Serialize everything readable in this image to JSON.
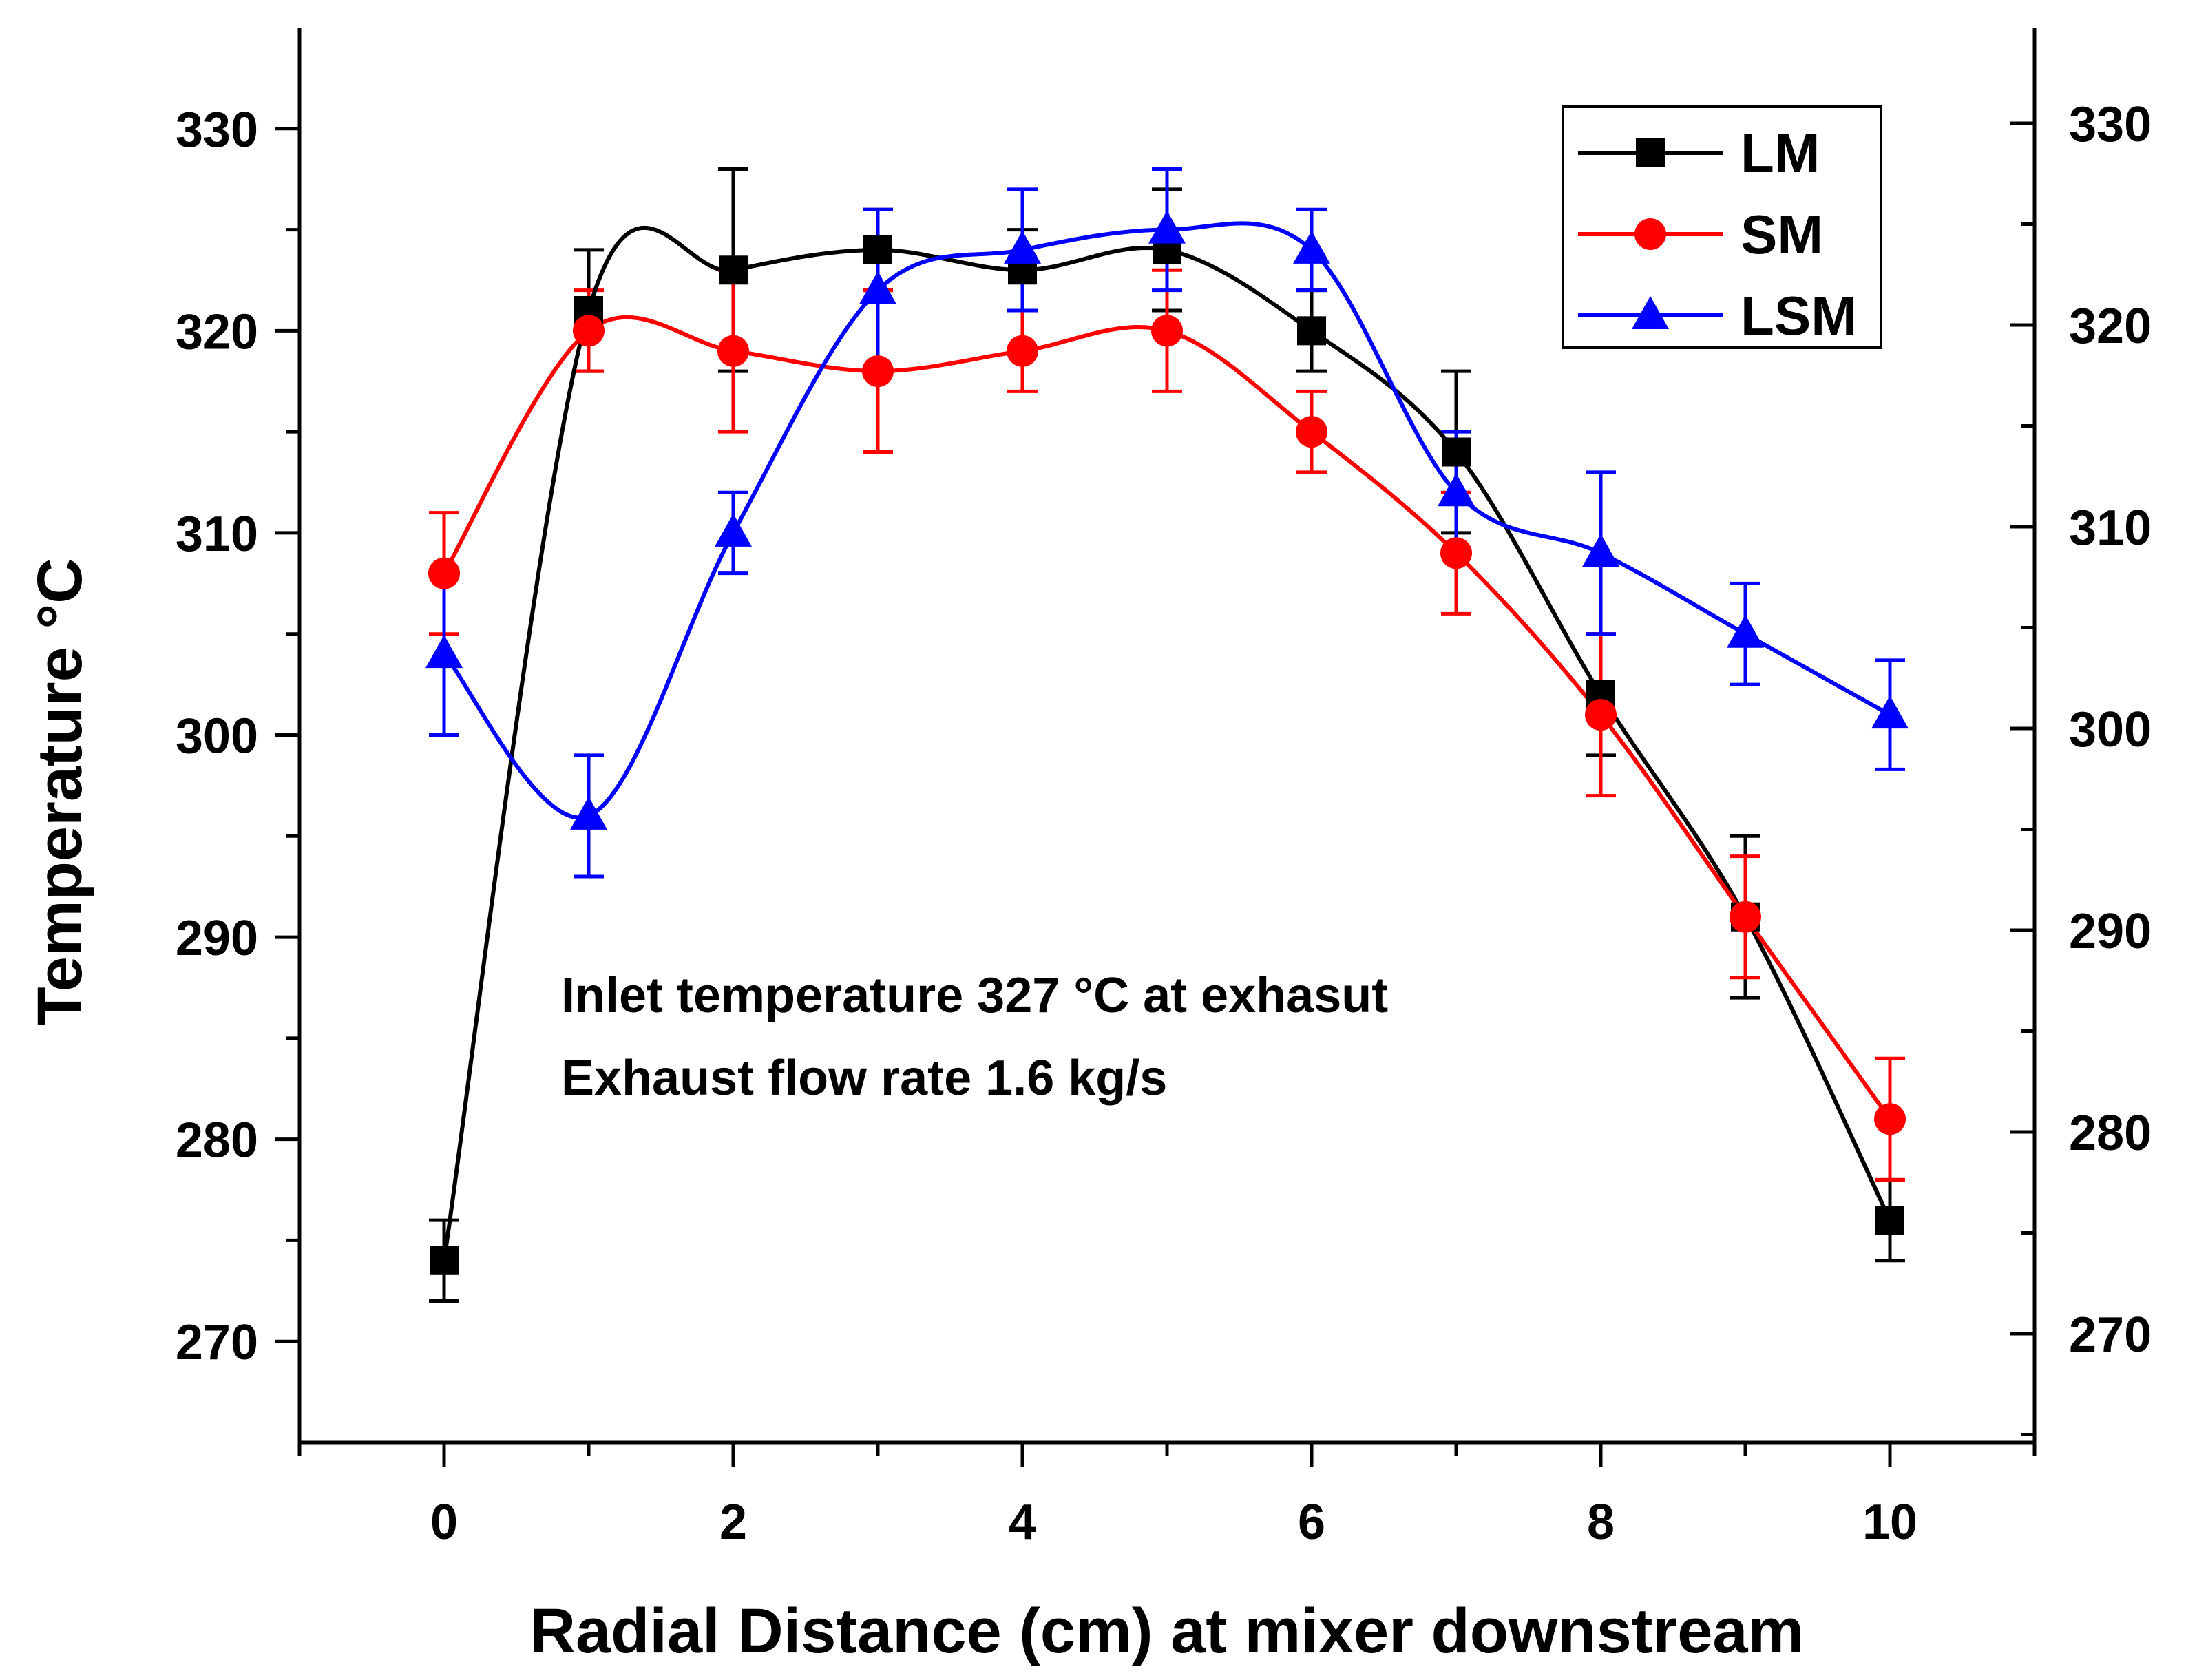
{
  "chart_data": {
    "type": "line",
    "title": "",
    "xlabel": "Radial Distance (cm) at mixer downstream",
    "ylabel": "Temperature °C",
    "xlim": [
      -1,
      11
    ],
    "ylim": [
      265,
      335
    ],
    "x_ticks": [
      0,
      2,
      4,
      6,
      8,
      10
    ],
    "y_ticks": [
      270,
      280,
      290,
      300,
      310,
      320,
      330
    ],
    "x_tick_labels": [
      "0",
      "2",
      "4",
      "6",
      "8",
      "10"
    ],
    "y_tick_labels": [
      "270",
      "280",
      "290",
      "300",
      "310",
      "320",
      "330"
    ],
    "grid": false,
    "legend_position": "top-right",
    "x": [
      0,
      1,
      2,
      3,
      4,
      5,
      6,
      7,
      8,
      9,
      10
    ],
    "series": [
      {
        "name": "LM",
        "color": "#000000",
        "marker": "square",
        "values": [
          274,
          321,
          323,
          324,
          323,
          324,
          320,
          314,
          302,
          291,
          276
        ],
        "errors": [
          2,
          3,
          5,
          2,
          2,
          3,
          2,
          4,
          3,
          4,
          2
        ]
      },
      {
        "name": "SM",
        "color": "#ff0000",
        "marker": "circle",
        "values": [
          308,
          320,
          319,
          318,
          319,
          320,
          315,
          309,
          301,
          291,
          281
        ],
        "errors": [
          3,
          2,
          4,
          4,
          2,
          3,
          2,
          3,
          4,
          3,
          3
        ]
      },
      {
        "name": "LSM",
        "color": "#0000ff",
        "marker": "triangle",
        "values": [
          304,
          296,
          310,
          322,
          324,
          325,
          324,
          312,
          309,
          305,
          301
        ],
        "errors": [
          4,
          3,
          2,
          4,
          3,
          3,
          2,
          3,
          4,
          2.5,
          2.7
        ]
      }
    ],
    "annotations": [
      "Inlet temperature 327 °C at exhasut",
      "Exhaust flow rate 1.6 kg/s"
    ]
  }
}
